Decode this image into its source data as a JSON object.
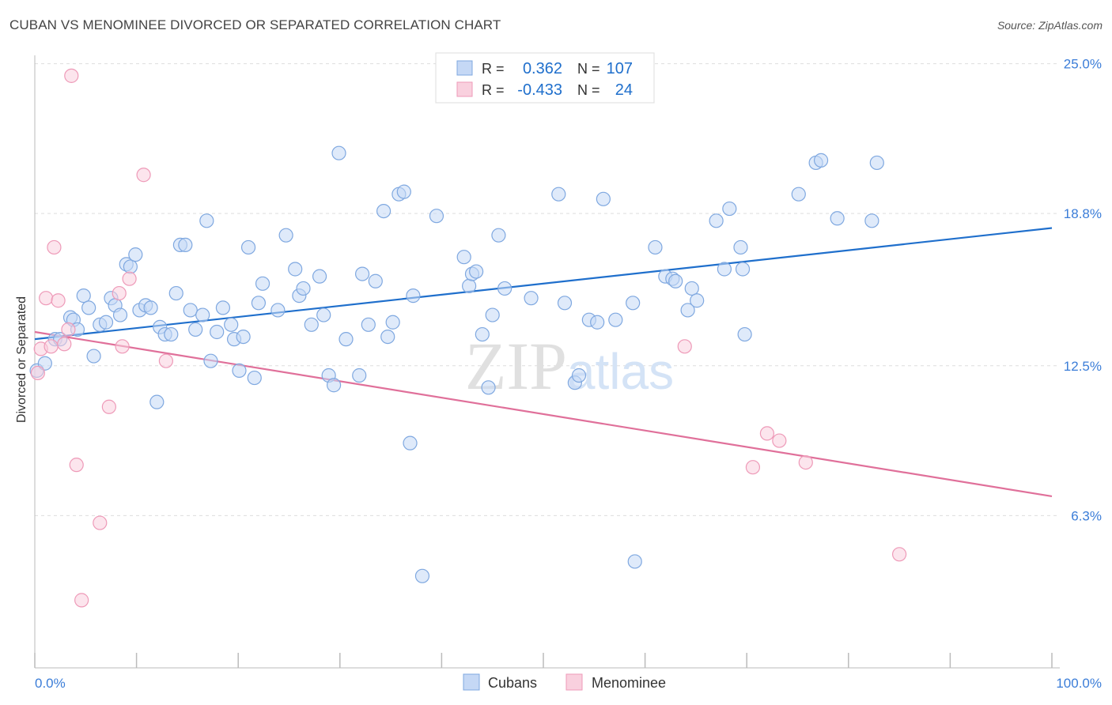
{
  "header": {
    "title": "CUBAN VS MENOMINEE DIVORCED OR SEPARATED CORRELATION CHART",
    "source": "Source: ZipAtlas.com"
  },
  "colors": {
    "blue": "#1f6fcc",
    "blue_fill": "#c5d8f5",
    "blue_stroke": "#7fa8e0",
    "pink": "#e0709a",
    "pink_fill": "#f9d0de",
    "pink_stroke": "#ee9ab8",
    "axis_text": "#3b7dd8"
  },
  "watermark": "ZIPatlas",
  "chart_data": {
    "type": "scatter",
    "title": "CUBAN VS MENOMINEE DIVORCED OR SEPARATED CORRELATION CHART",
    "xlabel": "",
    "ylabel": "Divorced or Separated",
    "xlim": [
      0,
      100
    ],
    "ylim": [
      0,
      26
    ],
    "x_tick_labels": [
      "0.0%",
      "100.0%"
    ],
    "y_ticks": [
      6.3,
      12.5,
      18.8,
      25.0
    ],
    "y_tick_labels": [
      "6.3%",
      "12.5%",
      "18.8%",
      "25.0%"
    ],
    "grid": true,
    "legend_position": "top-center",
    "legend": [
      {
        "series": "Cubans",
        "r_label": "R =",
        "r": "0.362",
        "n_label": "N =",
        "n": "107"
      },
      {
        "series": "Menominee",
        "r_label": "R =",
        "r": "-0.433",
        "n_label": "N =",
        "n": "24"
      }
    ],
    "series": [
      {
        "name": "Cubans",
        "trend": [
          [
            0,
            13.6
          ],
          [
            100,
            18.2
          ]
        ],
        "points": [
          [
            0.2,
            12.3
          ],
          [
            1.0,
            12.6
          ],
          [
            2.0,
            13.6
          ],
          [
            2.5,
            13.6
          ],
          [
            3.5,
            14.5
          ],
          [
            3.8,
            14.4
          ],
          [
            4.2,
            14.0
          ],
          [
            4.8,
            15.4
          ],
          [
            5.3,
            14.9
          ],
          [
            5.8,
            12.9
          ],
          [
            6.4,
            14.2
          ],
          [
            7.0,
            14.3
          ],
          [
            7.5,
            15.3
          ],
          [
            7.9,
            15.0
          ],
          [
            8.4,
            14.6
          ],
          [
            9.0,
            16.7
          ],
          [
            9.4,
            16.6
          ],
          [
            9.9,
            17.1
          ],
          [
            10.3,
            14.8
          ],
          [
            10.9,
            15.0
          ],
          [
            11.4,
            14.9
          ],
          [
            12.0,
            11.0
          ],
          [
            12.3,
            14.1
          ],
          [
            12.8,
            13.8
          ],
          [
            13.4,
            13.8
          ],
          [
            13.9,
            15.5
          ],
          [
            14.3,
            17.5
          ],
          [
            14.8,
            17.5
          ],
          [
            15.3,
            14.8
          ],
          [
            15.8,
            14.0
          ],
          [
            16.5,
            14.6
          ],
          [
            16.9,
            18.5
          ],
          [
            17.3,
            12.7
          ],
          [
            17.9,
            13.9
          ],
          [
            18.5,
            14.9
          ],
          [
            19.3,
            14.2
          ],
          [
            19.6,
            13.6
          ],
          [
            20.1,
            12.3
          ],
          [
            20.5,
            13.7
          ],
          [
            21.0,
            17.4
          ],
          [
            21.6,
            12.0
          ],
          [
            22.0,
            15.1
          ],
          [
            22.4,
            15.9
          ],
          [
            23.9,
            14.8
          ],
          [
            24.7,
            17.9
          ],
          [
            25.6,
            16.5
          ],
          [
            26.0,
            15.4
          ],
          [
            26.4,
            15.7
          ],
          [
            27.2,
            14.2
          ],
          [
            28.0,
            16.2
          ],
          [
            28.4,
            14.6
          ],
          [
            28.9,
            12.1
          ],
          [
            29.4,
            11.7
          ],
          [
            29.9,
            21.3
          ],
          [
            30.6,
            13.6
          ],
          [
            31.9,
            12.1
          ],
          [
            32.2,
            16.3
          ],
          [
            32.8,
            14.2
          ],
          [
            33.5,
            16.0
          ],
          [
            34.3,
            18.9
          ],
          [
            34.7,
            13.7
          ],
          [
            35.2,
            14.3
          ],
          [
            35.8,
            19.6
          ],
          [
            36.3,
            19.7
          ],
          [
            36.9,
            9.3
          ],
          [
            37.2,
            15.4
          ],
          [
            38.1,
            3.8
          ],
          [
            39.5,
            18.7
          ],
          [
            42.2,
            17.0
          ],
          [
            42.7,
            15.8
          ],
          [
            43.0,
            16.3
          ],
          [
            43.4,
            16.4
          ],
          [
            44.0,
            13.8
          ],
          [
            44.6,
            11.6
          ],
          [
            45.0,
            14.6
          ],
          [
            45.6,
            17.9
          ],
          [
            46.2,
            15.7
          ],
          [
            48.8,
            15.3
          ],
          [
            51.5,
            19.6
          ],
          [
            52.1,
            15.1
          ],
          [
            53.1,
            11.8
          ],
          [
            53.5,
            12.1
          ],
          [
            54.5,
            14.4
          ],
          [
            55.3,
            14.3
          ],
          [
            55.9,
            19.4
          ],
          [
            57.1,
            14.4
          ],
          [
            58.8,
            15.1
          ],
          [
            59.0,
            4.4
          ],
          [
            61.0,
            17.4
          ],
          [
            62.0,
            16.2
          ],
          [
            62.7,
            16.1
          ],
          [
            63.0,
            16.0
          ],
          [
            64.2,
            14.8
          ],
          [
            64.6,
            15.7
          ],
          [
            65.1,
            15.2
          ],
          [
            67.0,
            18.5
          ],
          [
            67.8,
            16.5
          ],
          [
            68.3,
            19.0
          ],
          [
            69.4,
            17.4
          ],
          [
            69.6,
            16.5
          ],
          [
            69.8,
            13.8
          ],
          [
            75.1,
            19.6
          ],
          [
            76.8,
            20.9
          ],
          [
            77.3,
            21.0
          ],
          [
            78.9,
            18.6
          ],
          [
            82.3,
            18.5
          ],
          [
            82.8,
            20.9
          ]
        ]
      },
      {
        "name": "Menominee",
        "trend": [
          [
            0,
            13.9
          ],
          [
            100,
            7.1
          ]
        ],
        "points": [
          [
            0.3,
            12.2
          ],
          [
            0.6,
            13.2
          ],
          [
            1.1,
            15.3
          ],
          [
            1.6,
            13.3
          ],
          [
            1.9,
            17.4
          ],
          [
            2.3,
            15.2
          ],
          [
            2.9,
            13.4
          ],
          [
            3.3,
            14.0
          ],
          [
            3.6,
            24.5
          ],
          [
            4.1,
            8.4
          ],
          [
            4.6,
            2.8
          ],
          [
            6.4,
            6.0
          ],
          [
            7.3,
            10.8
          ],
          [
            8.3,
            15.5
          ],
          [
            8.6,
            13.3
          ],
          [
            9.3,
            16.1
          ],
          [
            10.7,
            20.4
          ],
          [
            12.9,
            12.7
          ],
          [
            63.9,
            13.3
          ],
          [
            70.6,
            8.3
          ],
          [
            72.0,
            9.7
          ],
          [
            73.2,
            9.4
          ],
          [
            75.8,
            8.5
          ],
          [
            85.0,
            4.7
          ]
        ]
      }
    ]
  }
}
